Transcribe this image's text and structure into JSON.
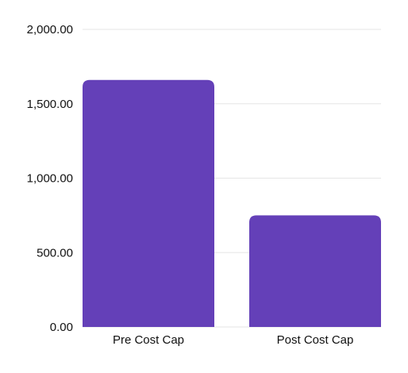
{
  "chart_data": {
    "type": "bar",
    "title": "",
    "xlabel": "",
    "ylabel": "",
    "categories": [
      "Pre Cost Cap",
      "Post Cost Cap"
    ],
    "values": [
      1660,
      750
    ],
    "ylim": [
      0,
      2000
    ],
    "yticks": [
      0,
      500,
      1000,
      1500,
      2000
    ],
    "ytick_labels": [
      "0.00",
      "500.00",
      "1,000.00",
      "1,500.00",
      "2,000.00"
    ],
    "grid": true,
    "legend": "none",
    "bar_color": "#6440B8",
    "grid_color": "#E6E6E6"
  }
}
